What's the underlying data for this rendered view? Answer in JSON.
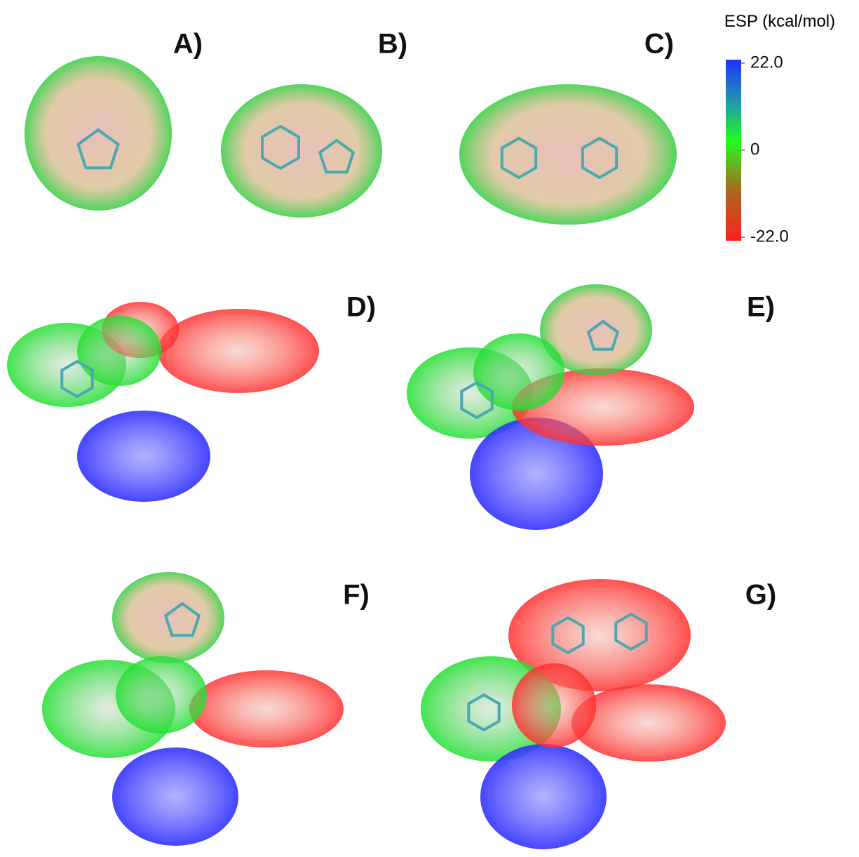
{
  "panels": [
    "A)",
    "B)",
    "C)",
    "D)",
    "E)",
    "F)",
    "G)"
  ],
  "colorbar": {
    "title": "ESP (kcal/mol)",
    "range": [
      -22,
      22
    ],
    "ticks": [
      {
        "value": 22,
        "label": "22.0"
      },
      0,
      {
        "value": -22,
        "label": "-22.0"
      }
    ]
  }
}
